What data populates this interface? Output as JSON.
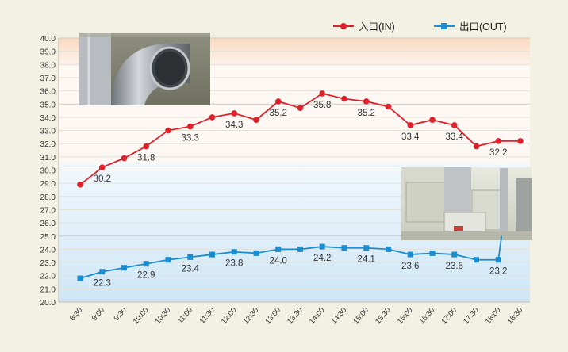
{
  "chart_data": {
    "type": "line",
    "title": "",
    "xlabel": "",
    "ylabel": "",
    "ylim": [
      20.0,
      40.0
    ],
    "y_tick_step": 1.0,
    "grid": true,
    "legend_position": "top-right",
    "categories": [
      "8:30",
      "9:00",
      "9:30",
      "10:00",
      "10:30",
      "11:00",
      "11:30",
      "12:00",
      "12:30",
      "13:00",
      "13:30",
      "14:00",
      "14:30",
      "15:00",
      "15:30",
      "16:00",
      "16:30",
      "17:00",
      "17:30",
      "18:00",
      "18:30"
    ],
    "series": [
      {
        "name": "入口(IN)",
        "color": "#e0202a",
        "marker": "circle",
        "values": [
          28.9,
          30.2,
          30.9,
          31.8,
          33.0,
          33.3,
          34.0,
          34.3,
          33.8,
          35.2,
          34.7,
          35.8,
          35.4,
          35.2,
          34.8,
          33.4,
          33.8,
          33.4,
          31.8,
          32.2,
          32.2
        ],
        "labels": [
          {
            "category": "9:00",
            "text": "30.2"
          },
          {
            "category": "10:00",
            "text": "31.8"
          },
          {
            "category": "11:00",
            "text": "33.3"
          },
          {
            "category": "12:00",
            "text": "34.3"
          },
          {
            "category": "13:00",
            "text": "35.2"
          },
          {
            "category": "14:00",
            "text": "35.8"
          },
          {
            "category": "15:00",
            "text": "35.2"
          },
          {
            "category": "16:00",
            "text": "33.4"
          },
          {
            "category": "17:00",
            "text": "33.4"
          },
          {
            "category": "18:00",
            "text": "32.2"
          }
        ]
      },
      {
        "name": "出口(OUT)",
        "color": "#1a8ccf",
        "marker": "square",
        "values": [
          21.8,
          22.3,
          22.6,
          22.9,
          23.2,
          23.4,
          23.6,
          23.8,
          23.7,
          24.0,
          24.0,
          24.2,
          24.1,
          24.1,
          24.0,
          23.6,
          23.7,
          23.6,
          23.2,
          23.2,
          null
        ],
        "extra_segment_to": 25.0,
        "labels": [
          {
            "category": "9:00",
            "text": "22.3"
          },
          {
            "category": "10:00",
            "text": "22.9"
          },
          {
            "category": "11:00",
            "text": "23.4"
          },
          {
            "category": "12:00",
            "text": "23.8"
          },
          {
            "category": "13:00",
            "text": "24.0"
          },
          {
            "category": "14:00",
            "text": "24.2"
          },
          {
            "category": "15:00",
            "text": "24.1"
          },
          {
            "category": "16:00",
            "text": "23.6"
          },
          {
            "category": "17:00",
            "text": "23.6"
          },
          {
            "category": "18:00",
            "text": "23.2"
          }
        ]
      }
    ]
  },
  "colors": {
    "background": "#f3f0e4",
    "warm_band": "#fbe3d0",
    "cool_band": "#dcedf8",
    "gridline": "#d9d6cc",
    "axis_text": "#333333"
  },
  "photos": [
    {
      "name": "duct-photo",
      "icon": "metal-duct-elbow"
    },
    {
      "name": "equipment-photo",
      "icon": "ventilation-units"
    }
  ]
}
